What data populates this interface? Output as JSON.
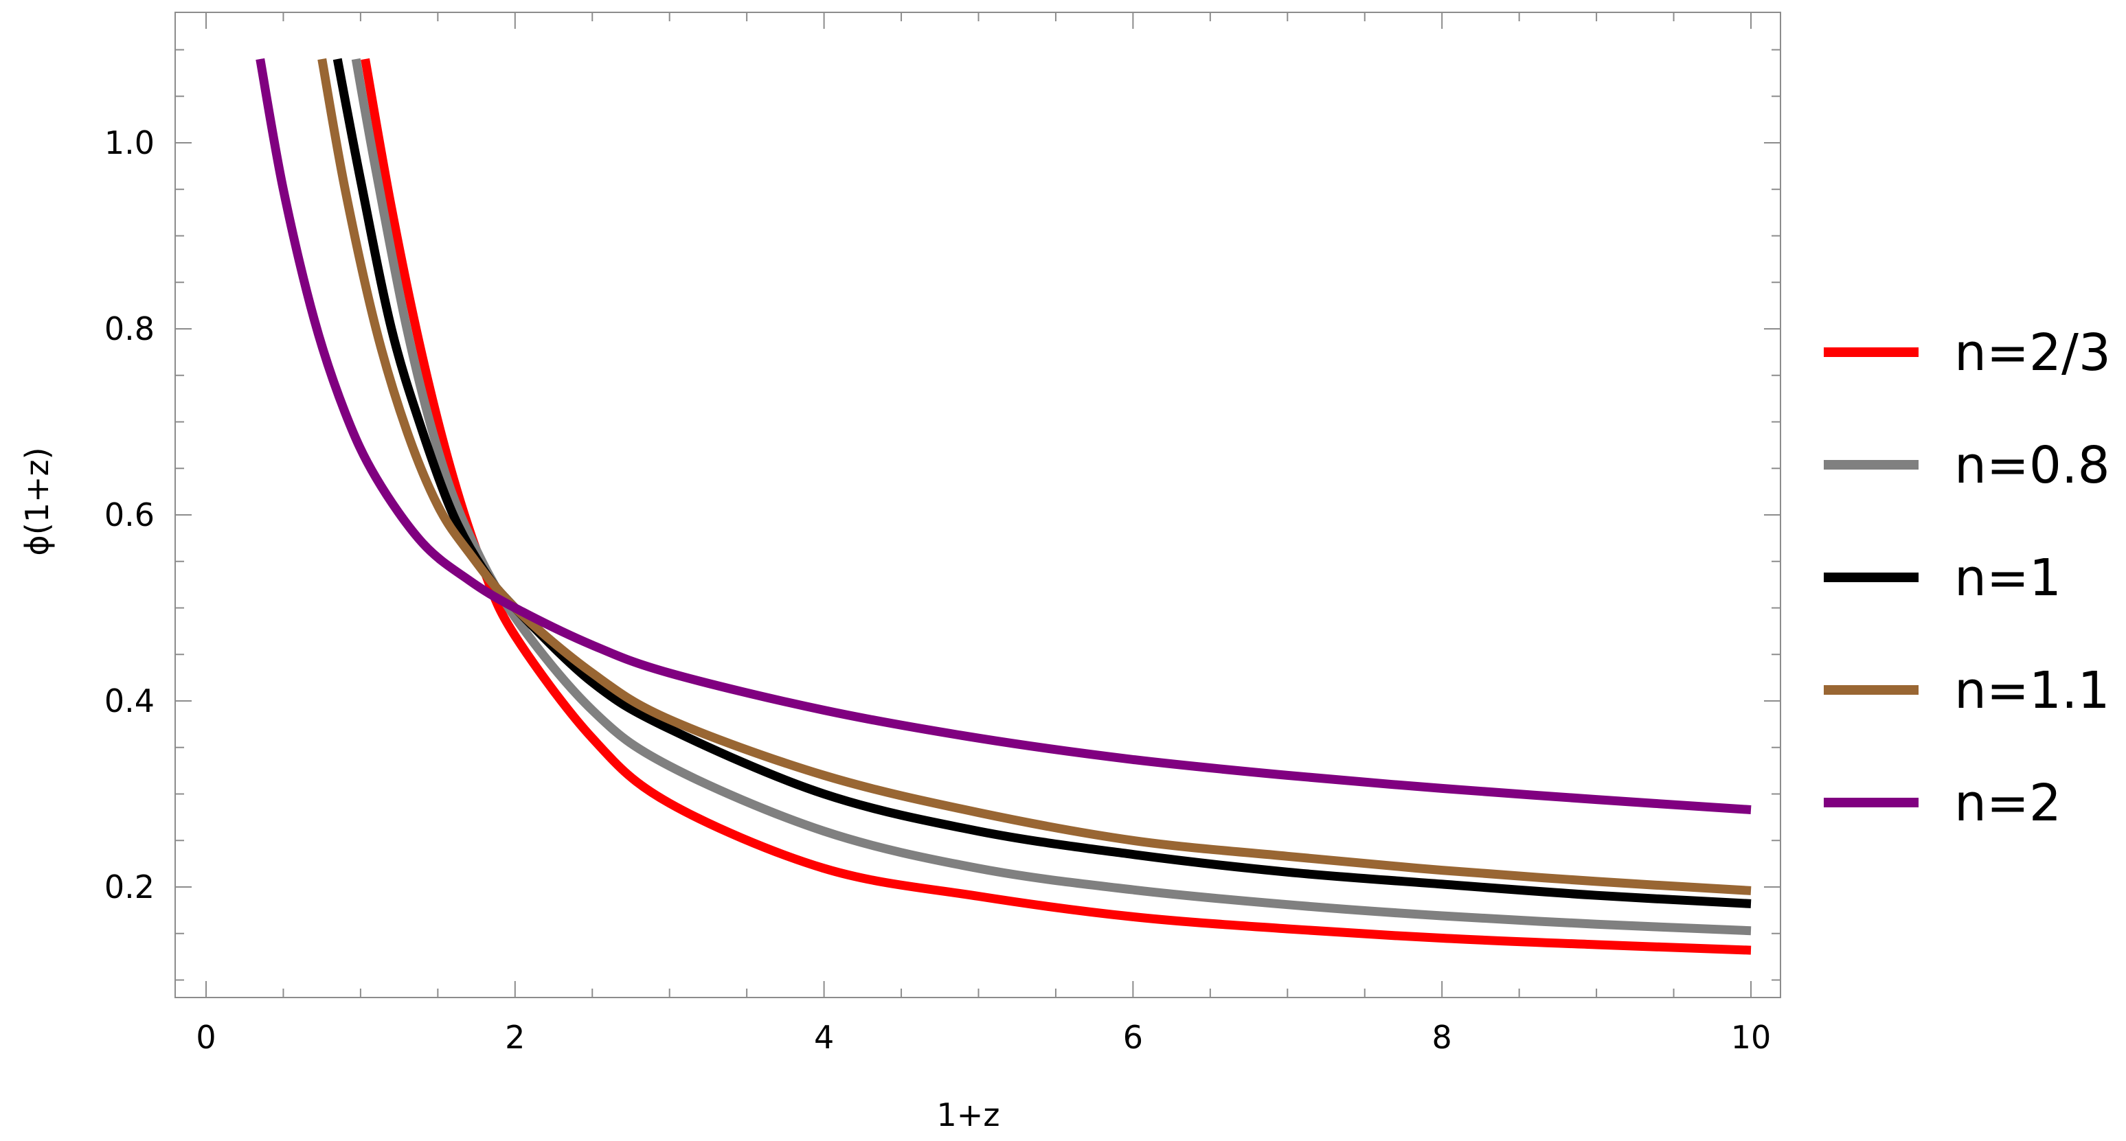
{
  "chart_data": {
    "type": "line",
    "title": "",
    "xlabel": "1+z",
    "ylabel": "ϕ(1+z)",
    "xlim": [
      -0.4,
      10.4
    ],
    "ylim": [
      0.08,
      1.1
    ],
    "xticks": [
      0,
      2,
      4,
      6,
      8,
      10
    ],
    "yticks": [
      0.2,
      0.4,
      0.6,
      0.8,
      1.0
    ],
    "xtick_labels": [
      "0",
      "2",
      "4",
      "6",
      "8",
      "10"
    ],
    "ytick_labels": [
      "0.2",
      "0.4",
      "0.6",
      "0.8",
      "1.0"
    ],
    "grid": false,
    "legend_position": "right",
    "series": [
      {
        "name": "n=2/3",
        "color": "#ff0000",
        "x": [
          1.03,
          1.2,
          1.4,
          1.6,
          1.8,
          2.0,
          2.5,
          3.0,
          4.0,
          5.0,
          6.0,
          7.0,
          8.0,
          9.0,
          10.0
        ],
        "y": [
          1.09,
          0.93,
          0.77,
          0.64,
          0.54,
          0.47,
          0.36,
          0.29,
          0.22,
          0.19,
          0.168,
          0.155,
          0.145,
          0.138,
          0.132
        ]
      },
      {
        "name": "n=0.8",
        "color": "#808080",
        "x": [
          0.97,
          1.1,
          1.3,
          1.5,
          1.7,
          2.0,
          2.5,
          3.0,
          4.0,
          5.0,
          6.0,
          7.0,
          8.0,
          9.0,
          10.0
        ],
        "y": [
          1.09,
          0.97,
          0.8,
          0.67,
          0.58,
          0.49,
          0.39,
          0.33,
          0.26,
          0.22,
          0.197,
          0.181,
          0.169,
          0.16,
          0.153
        ]
      },
      {
        "name": "n=1",
        "color": "#000000",
        "x": [
          0.85,
          1.0,
          1.2,
          1.4,
          1.6,
          1.8,
          2.0,
          2.5,
          3.0,
          4.0,
          5.0,
          6.0,
          7.0,
          8.0,
          9.0,
          10.0
        ],
        "y": [
          1.09,
          0.96,
          0.8,
          0.69,
          0.6,
          0.54,
          0.5,
          0.42,
          0.37,
          0.3,
          0.26,
          0.235,
          0.216,
          0.203,
          0.191,
          0.182
        ]
      },
      {
        "name": "n=1.1",
        "color": "#996633",
        "x": [
          0.75,
          0.9,
          1.1,
          1.3,
          1.5,
          1.7,
          2.0,
          2.5,
          3.0,
          4.0,
          5.0,
          6.0,
          7.0,
          8.0,
          9.0,
          10.0
        ],
        "y": [
          1.09,
          0.95,
          0.8,
          0.69,
          0.61,
          0.56,
          0.5,
          0.43,
          0.38,
          0.32,
          0.28,
          0.25,
          0.233,
          0.218,
          0.206,
          0.196
        ]
      },
      {
        "name": "n=2",
        "color": "#800080",
        "x": [
          0.35,
          0.5,
          0.7,
          0.9,
          1.1,
          1.4,
          1.7,
          2.0,
          2.5,
          3.0,
          4.0,
          5.0,
          6.0,
          7.0,
          8.0,
          9.0,
          10.0
        ],
        "y": [
          1.09,
          0.95,
          0.81,
          0.71,
          0.64,
          0.57,
          0.53,
          0.5,
          0.46,
          0.43,
          0.39,
          0.36,
          0.337,
          0.32,
          0.306,
          0.294,
          0.283
        ]
      }
    ]
  }
}
